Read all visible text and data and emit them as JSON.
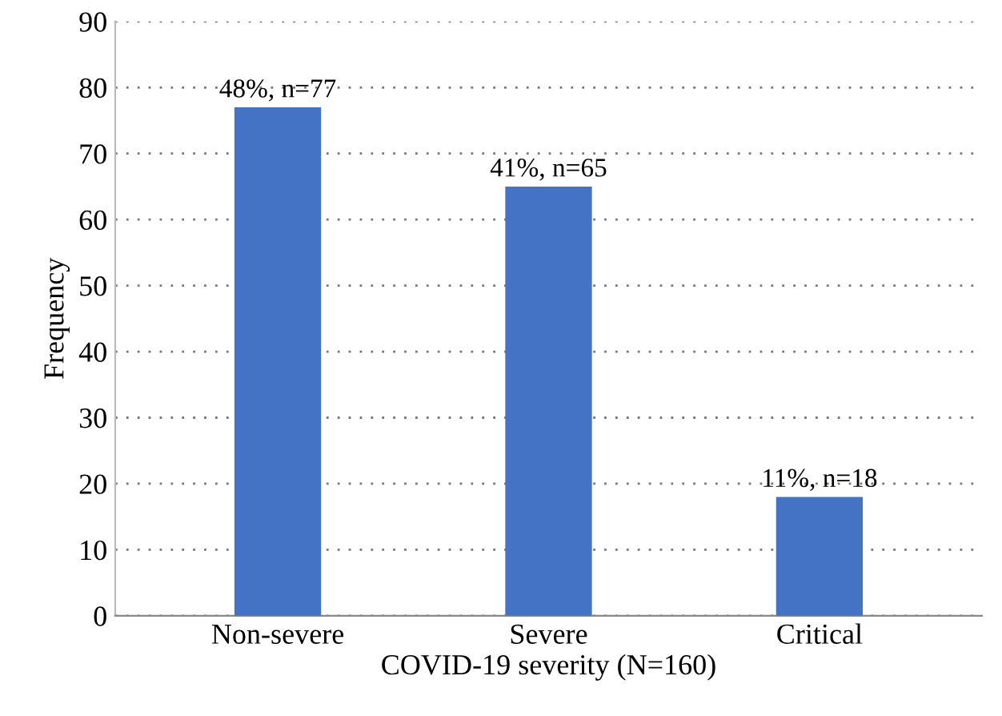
{
  "chart_data": {
    "type": "bar",
    "xlabel": "COVID-19 severity (N=160)",
    "ylabel": "Frequency",
    "categories": [
      "Non-severe",
      "Severe",
      "Critical"
    ],
    "values": [
      77,
      65,
      18
    ],
    "value_labels": [
      "48%, n=77",
      "41%, n=65",
      "11%, n=18"
    ],
    "color": "#4472c4",
    "ylim": [
      0,
      90
    ],
    "yticks": [
      0,
      10,
      20,
      30,
      40,
      50,
      60,
      70,
      80,
      90
    ],
    "grid": "y"
  }
}
